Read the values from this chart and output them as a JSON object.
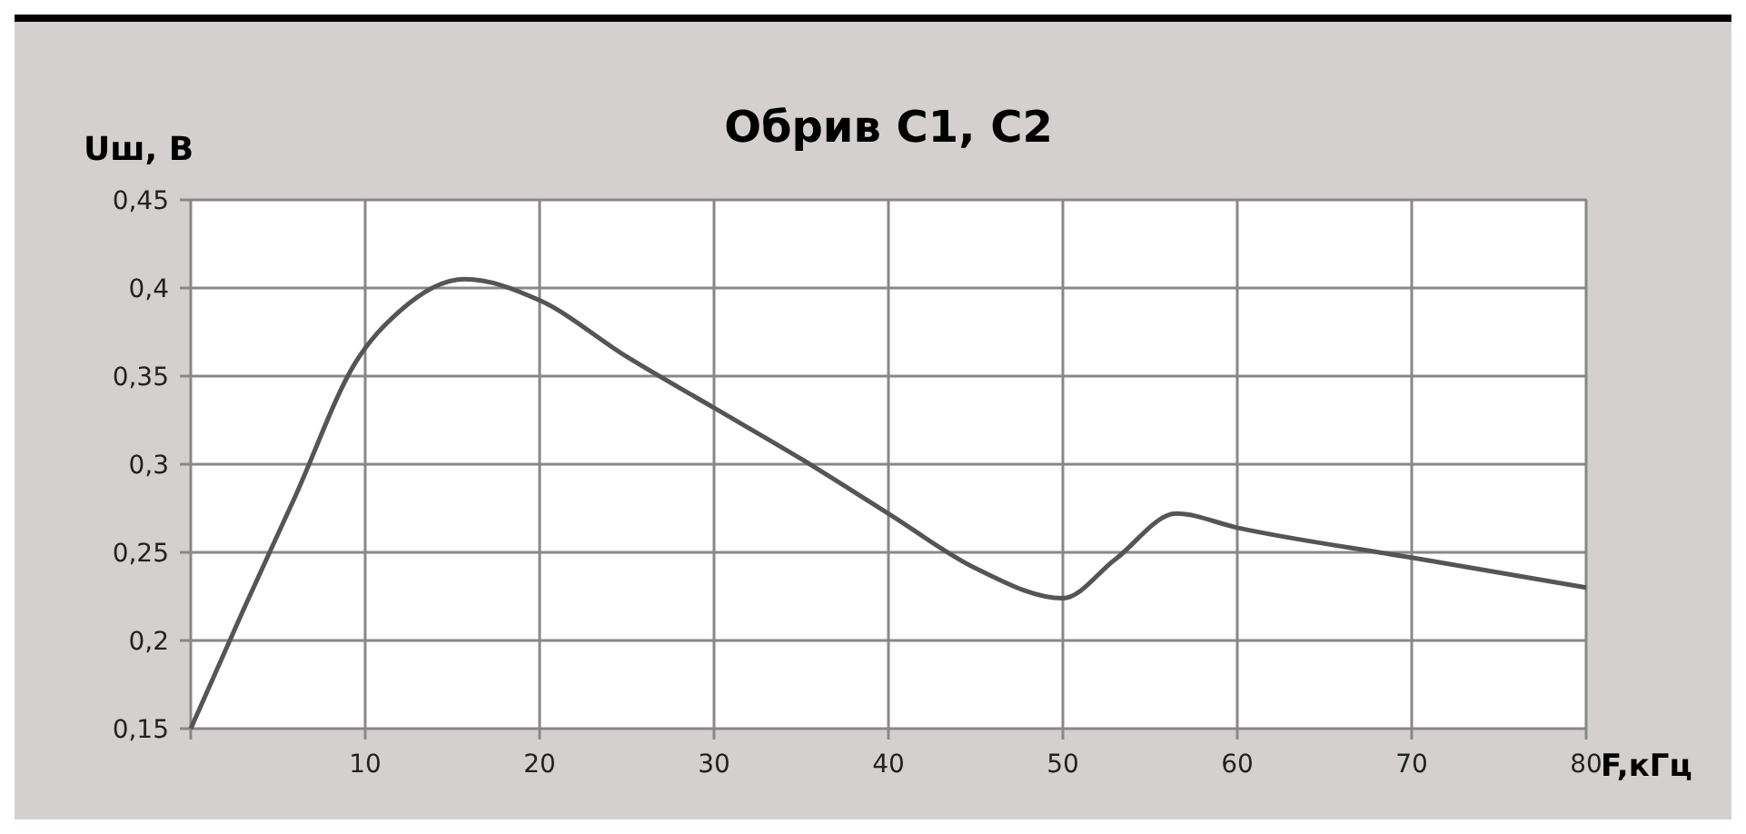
{
  "chart_data": {
    "type": "line",
    "title": "Обрив С1, С2",
    "ylabel": "Uш, В",
    "xlabel": "F,кГц",
    "xlim": [
      0,
      80
    ],
    "xticks": [
      {
        "value": 0,
        "label": null
      },
      10,
      20,
      30,
      40,
      50,
      60,
      70,
      80
    ],
    "ylim": [
      0.15,
      0.45
    ],
    "yticks": [
      {
        "value": 0.15,
        "label": "0,15"
      },
      {
        "value": 0.2,
        "label": "0,2"
      },
      {
        "value": 0.25,
        "label": "0,25"
      },
      {
        "value": 0.3,
        "label": "0,3"
      },
      {
        "value": 0.35,
        "label": "0,35"
      },
      {
        "value": 0.4,
        "label": "0,4"
      },
      {
        "value": 0.45,
        "label": "0,45"
      }
    ],
    "grid": true,
    "marker": "none",
    "line_style": "solid",
    "series": [
      {
        "color": "#555555",
        "x": [
          0,
          3,
          6,
          9.4,
          12,
          15.7,
          20,
          25,
          30,
          35,
          40,
          45,
          50,
          53,
          56.5,
          60,
          70,
          80
        ],
        "values": [
          0.15,
          0.217,
          0.282,
          0.357,
          0.387,
          0.405,
          0.393,
          0.361,
          0.332,
          0.303,
          0.272,
          0.241,
          0.224,
          0.246,
          0.272,
          0.264,
          0.247,
          0.23
        ]
      }
    ]
  }
}
